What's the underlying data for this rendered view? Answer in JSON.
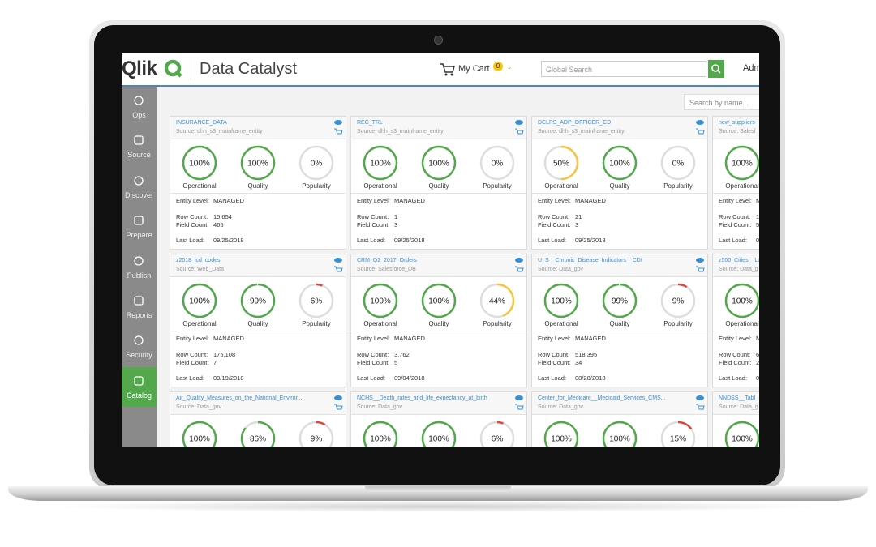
{
  "header": {
    "logo": "Qlik",
    "app_title": "Data Catalyst",
    "cart_label": "My Cart",
    "cart_count": "0",
    "search_placeholder": "Global Search",
    "user": "Adm"
  },
  "sidebar": {
    "items": [
      "Ops",
      "Source",
      "Discover",
      "Prepare",
      "Publish",
      "Reports",
      "Security",
      "Catalog"
    ],
    "active": "Catalog"
  },
  "catalog": {
    "search_placeholder": "Search by name...",
    "metric_names": [
      "Operational",
      "Quality",
      "Popularity"
    ],
    "detail_labels": [
      "Entity Level:",
      "Row Count:",
      "Field Count:",
      "Last Load:"
    ],
    "rows": [
      [
        {
          "title": "INSURANCE_DATA",
          "source": "Source: dhh_s3_mainframe_entity",
          "metrics": [
            {
              "value": 100,
              "label": "100%"
            },
            {
              "value": 100,
              "label": "100%"
            },
            {
              "value": 0,
              "label": "0%"
            }
          ],
          "details": [
            "MANAGED",
            "15,654",
            "465",
            "09/25/2018"
          ]
        },
        {
          "title": "REC_TRL",
          "source": "Source: dhh_s3_mainframe_entity",
          "metrics": [
            {
              "value": 100,
              "label": "100%"
            },
            {
              "value": 100,
              "label": "100%"
            },
            {
              "value": 0,
              "label": "0%"
            }
          ],
          "details": [
            "MANAGED",
            "1",
            "3",
            "09/25/2018"
          ]
        },
        {
          "title": "DCLPS_ADP_OFFICER_CD",
          "source": "Source: dhh_s3_mainframe_entity",
          "metrics": [
            {
              "value": 50,
              "label": "50%"
            },
            {
              "value": 100,
              "label": "100%"
            },
            {
              "value": 0,
              "label": "0%"
            }
          ],
          "details": [
            "MANAGED",
            "21",
            "3",
            "09/25/2018"
          ]
        },
        {
          "title": "new_suppliers",
          "source": "Source: Salesf",
          "metrics": [
            {
              "value": 100,
              "label": "100%"
            }
          ],
          "details": [
            "M",
            "1",
            "5",
            "0"
          ]
        }
      ],
      [
        {
          "title": "z2018_icd_codes",
          "source": "Source: Web_Data",
          "metrics": [
            {
              "value": 100,
              "label": "100%"
            },
            {
              "value": 99,
              "label": "99%"
            },
            {
              "value": 6,
              "label": "6%"
            }
          ],
          "details": [
            "MANAGED",
            "175,108",
            "7",
            "09/19/2018"
          ]
        },
        {
          "title": "CRM_Q2_2017_Orders",
          "source": "Source: Salesforce_DB",
          "metrics": [
            {
              "value": 100,
              "label": "100%"
            },
            {
              "value": 100,
              "label": "100%"
            },
            {
              "value": 44,
              "label": "44%"
            }
          ],
          "details": [
            "MANAGED",
            "3,762",
            "5",
            "09/04/2018"
          ]
        },
        {
          "title": "U_S__Chronic_Disease_Indicators__CDI",
          "source": "Source: Data_gov",
          "metrics": [
            {
              "value": 100,
              "label": "100%"
            },
            {
              "value": 99,
              "label": "99%"
            },
            {
              "value": 9,
              "label": "9%"
            }
          ],
          "details": [
            "MANAGED",
            "518,395",
            "34",
            "08/28/2018"
          ]
        },
        {
          "title": "z500_Cities__Lo",
          "source": "Source: Data_g",
          "metrics": [
            {
              "value": 100,
              "label": "100%"
            }
          ],
          "details": [
            "M",
            "6",
            "2",
            "0"
          ]
        }
      ],
      [
        {
          "title": "Air_Quality_Measures_on_the_National_Environ...",
          "source": "Source: Data_gov",
          "metrics": [
            {
              "value": 100,
              "label": "100%"
            },
            {
              "value": 86,
              "label": "86%"
            },
            {
              "value": 9,
              "label": "9%"
            }
          ]
        },
        {
          "title": "NCHS__Death_rates_and_life_expectancy_at_birth",
          "source": "Source: Data_gov",
          "metrics": [
            {
              "value": 100,
              "label": "100%"
            },
            {
              "value": 100,
              "label": "100%"
            },
            {
              "value": 6,
              "label": "6%"
            }
          ]
        },
        {
          "title": "Center_for_Medicare__Medicaid_Services_CMS...",
          "source": "Source: Data_gov",
          "metrics": [
            {
              "value": 100,
              "label": "100%"
            },
            {
              "value": 100,
              "label": "100%"
            },
            {
              "value": 15,
              "label": "15%"
            }
          ]
        },
        {
          "title": "NNDSS__Tabl",
          "source": "Source: Data_g",
          "metrics": [
            {
              "value": 100,
              "label": "100%"
            }
          ]
        }
      ]
    ]
  }
}
